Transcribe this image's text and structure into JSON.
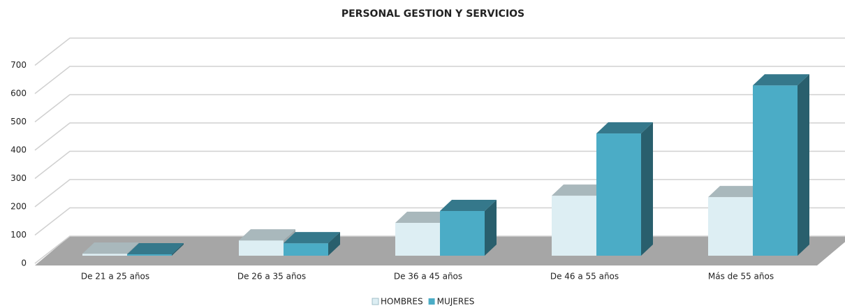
{
  "chart_data": {
    "type": "bar3d",
    "title": "PERSONAL GESTION Y SERVICIOS",
    "categories": [
      "De 21 a 25 años",
      "De 26 a 35 años",
      "De 36 a 45 años",
      "De 46 a 55 años",
      "Más de 55 años"
    ],
    "series": [
      {
        "name": "HOMBRES",
        "color": "#ddeef3",
        "values": [
          7,
          54,
          116,
          212,
          207
        ]
      },
      {
        "name": "MUJERES",
        "color": "#4bacc6",
        "values": [
          5,
          44,
          158,
          432,
          602
        ]
      }
    ],
    "ylim": [
      0,
      700
    ],
    "yticks": [
      0,
      100,
      200,
      300,
      400,
      500,
      600,
      700
    ],
    "grid": true,
    "legend": "bottom"
  }
}
